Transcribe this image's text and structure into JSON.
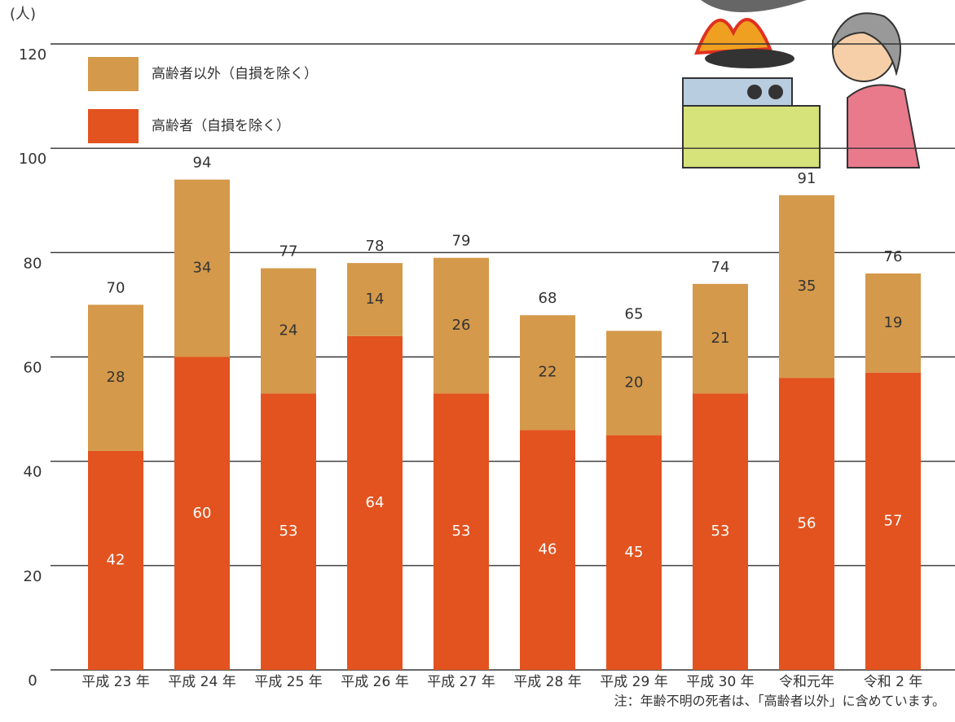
{
  "chart_data": {
    "type": "stacked-bar",
    "y_unit": "(人)",
    "categories": [
      "平成 23 年",
      "平成 24 年",
      "平成 25 年",
      "平成 26 年",
      "平成 27 年",
      "平成 28 年",
      "平成 29 年",
      "平成 30 年",
      "令和元年",
      "令和 2 年"
    ],
    "series": [
      {
        "name": "高齢者（自損を除く）",
        "color": "#e2531f",
        "values": [
          42,
          60,
          53,
          64,
          53,
          46,
          45,
          53,
          56,
          57
        ]
      },
      {
        "name": "高齢者以外（自損を除く）",
        "color": "#d4994a",
        "values": [
          28,
          34,
          24,
          14,
          26,
          22,
          20,
          21,
          35,
          19
        ]
      }
    ],
    "totals": [
      70,
      94,
      77,
      78,
      79,
      68,
      65,
      74,
      91,
      76
    ],
    "ylim": [
      0,
      120
    ],
    "yticks": [
      0,
      20,
      40,
      60,
      80,
      100,
      120
    ],
    "grid": true,
    "note": "注：年齢不明の死者は、「高齢者以外」に含めています。"
  }
}
